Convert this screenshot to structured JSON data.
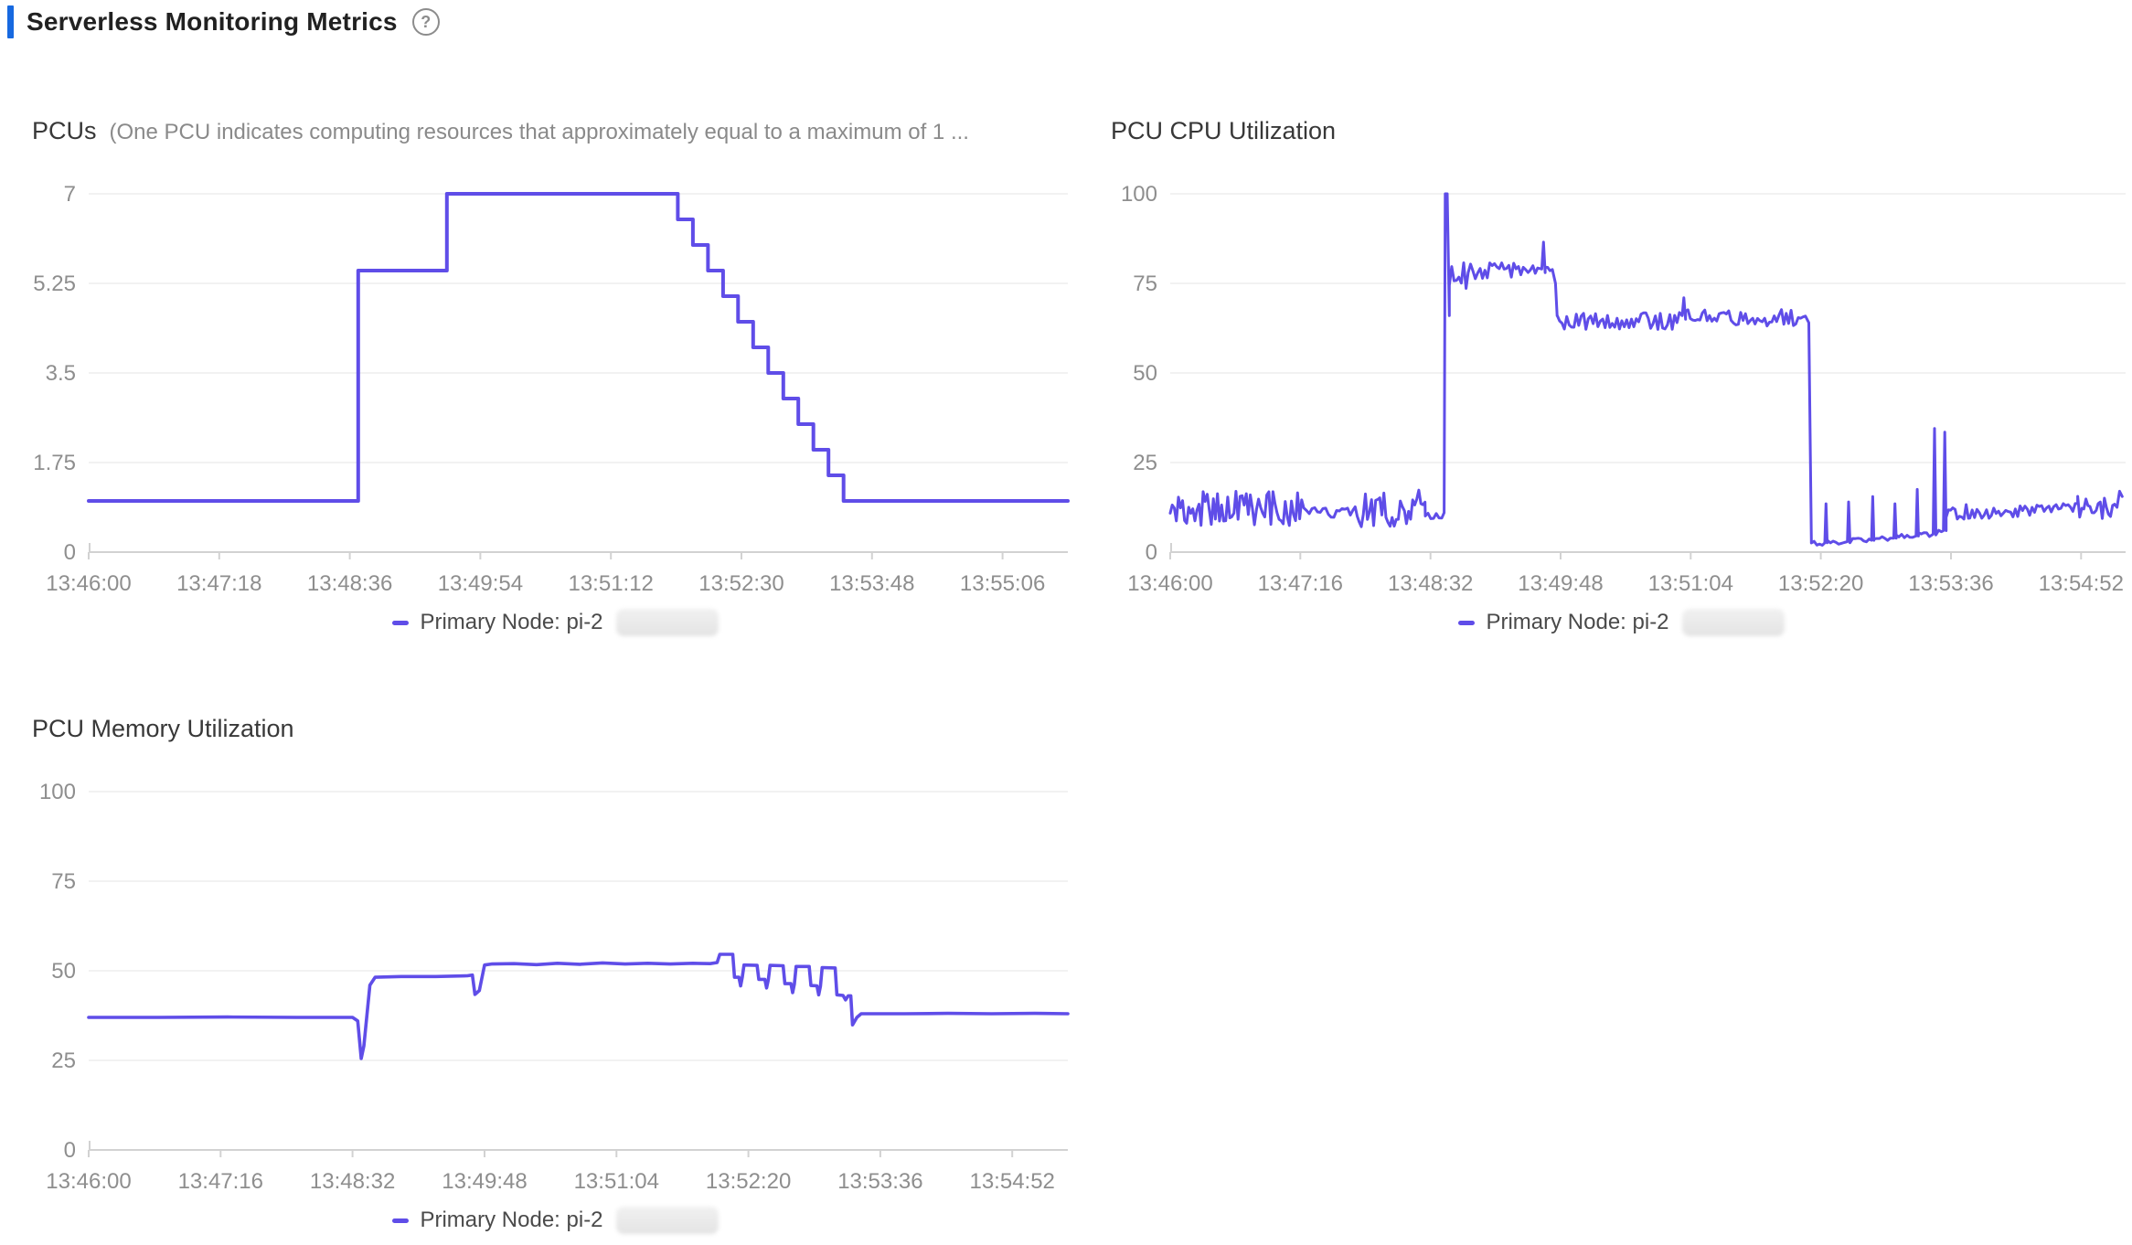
{
  "header": {
    "title": "Serverless Monitoring Metrics",
    "help_icon": "?"
  },
  "colors": {
    "accent_bar": "#1769e0",
    "line": "#5f4de8",
    "grid": "#ededed",
    "axis": "#d2d2d2",
    "tick_label": "#8e8e8e",
    "chart_title": "#383838",
    "subtitle": "#8a8a8a",
    "legend_text": "#4a4a4a"
  },
  "chart_data": [
    {
      "type": "line",
      "title": "PCUs",
      "subtitle": "(One PCU indicates computing resources that approximately equal to a maximum of 1 ...",
      "xlabel": "",
      "ylabel": "",
      "ylim": [
        0,
        7
      ],
      "grid": true,
      "y_ticks": [
        {
          "v": 0,
          "label": "0"
        },
        {
          "v": 1.75,
          "label": "1.75"
        },
        {
          "v": 3.5,
          "label": "3.5"
        },
        {
          "v": 5.25,
          "label": "5.25"
        },
        {
          "v": 7,
          "label": "7"
        }
      ],
      "x_ticks": [
        {
          "t": 0,
          "label": "13:46:00"
        },
        {
          "t": 78,
          "label": "13:47:18"
        },
        {
          "t": 156,
          "label": "13:48:36"
        },
        {
          "t": 234,
          "label": "13:49:54"
        },
        {
          "t": 312,
          "label": "13:51:12"
        },
        {
          "t": 390,
          "label": "13:52:30"
        },
        {
          "t": 468,
          "label": "13:53:48"
        },
        {
          "t": 546,
          "label": "13:55:06"
        }
      ],
      "t_max": 585,
      "legend": {
        "position": "bottom",
        "label": "Primary Node: pi-2",
        "redacted": true
      },
      "series": [
        {
          "name": "Primary Node: pi-2",
          "points": [
            [
              0,
              1
            ],
            [
              161,
              1
            ],
            [
              161,
              5.5
            ],
            [
              214,
              5.5
            ],
            [
              214,
              7
            ],
            [
              352,
              7
            ],
            [
              352,
              6.5
            ],
            [
              361,
              6.5
            ],
            [
              361,
              6
            ],
            [
              370,
              6
            ],
            [
              370,
              5.5
            ],
            [
              379,
              5.5
            ],
            [
              379,
              5
            ],
            [
              388,
              5
            ],
            [
              388,
              4.5
            ],
            [
              397,
              4.5
            ],
            [
              397,
              4
            ],
            [
              406,
              4
            ],
            [
              406,
              3.5
            ],
            [
              415,
              3.5
            ],
            [
              415,
              3
            ],
            [
              424,
              3
            ],
            [
              424,
              2.5
            ],
            [
              433,
              2.5
            ],
            [
              433,
              2
            ],
            [
              442,
              2
            ],
            [
              442,
              1.5
            ],
            [
              451,
              1.5
            ],
            [
              451,
              1
            ],
            [
              585,
              1
            ]
          ]
        }
      ]
    },
    {
      "type": "line",
      "title": "PCU CPU Utilization",
      "subtitle": "",
      "xlabel": "",
      "ylabel": "",
      "ylim": [
        0,
        100
      ],
      "grid": true,
      "y_ticks": [
        {
          "v": 0,
          "label": "0"
        },
        {
          "v": 25,
          "label": "25"
        },
        {
          "v": 50,
          "label": "50"
        },
        {
          "v": 75,
          "label": "75"
        },
        {
          "v": 100,
          "label": "100"
        }
      ],
      "x_ticks": [
        {
          "t": 0,
          "label": "13:46:00"
        },
        {
          "t": 76,
          "label": "13:47:16"
        },
        {
          "t": 152,
          "label": "13:48:32"
        },
        {
          "t": 228,
          "label": "13:49:48"
        },
        {
          "t": 304,
          "label": "13:51:04"
        },
        {
          "t": 380,
          "label": "13:52:20"
        },
        {
          "t": 456,
          "label": "13:53:36"
        },
        {
          "t": 532,
          "label": "13:54:52"
        }
      ],
      "t_max": 558,
      "legend": {
        "position": "bottom",
        "label": "Primary Node: pi-2",
        "redacted": true
      },
      "series": [
        {
          "name": "Primary Node: pi-2",
          "segments": [
            {
              "t0": 0,
              "t1": 78,
              "v": 12,
              "amp": 5.5,
              "dt": 1.2
            },
            {
              "t0": 78,
              "t1": 108,
              "v": 11,
              "amp": 1.4,
              "dt": 1.6
            },
            {
              "t0": 108,
              "t1": 149,
              "v": 12,
              "amp": 5.5,
              "dt": 1.2
            },
            {
              "t0": 149,
              "t1": 159,
              "v": 10,
              "amp": 0.9,
              "dt": 1.6
            },
            {
              "pts": [
                [
                  160,
                  11
                ],
                [
                  160.6,
                  100
                ],
                [
                  161.8,
                  100
                ],
                [
                  163,
                  66
                ]
              ]
            },
            {
              "t0": 163,
              "t1": 174,
              "v": 77,
              "amp": 5,
              "dt": 1.4
            },
            {
              "t0": 174,
              "t1": 216,
              "v": 78.5,
              "amp": 2.4,
              "dt": 1.4
            },
            {
              "pts": [
                [
                  217,
                  79
                ],
                [
                  218,
                  86.5
                ],
                [
                  219,
                  78
                ]
              ]
            },
            {
              "t0": 219,
              "t1": 224,
              "v": 78,
              "amp": 2,
              "dt": 1.4
            },
            {
              "pts": [
                [
                  225,
                  75
                ],
                [
                  226,
                  66
                ]
              ]
            },
            {
              "t0": 226,
              "t1": 298,
              "v": 64.5,
              "amp": 2.4,
              "dt": 1.4
            },
            {
              "pts": [
                [
                  299,
                  66
                ],
                [
                  300,
                  71
                ],
                [
                  301,
                  65
                ]
              ]
            },
            {
              "t0": 301,
              "t1": 372,
              "v": 65.5,
              "amp": 2.4,
              "dt": 1.4
            },
            {
              "pts": [
                [
                  373,
                  64
                ],
                [
                  374.5,
                  3
                ]
              ]
            },
            {
              "t0": 374.5,
              "t1": 381,
              "v": 2.5,
              "amp": 0.6,
              "dt": 1.6
            },
            {
              "pts": [
                [
                  382.3,
                  2.6
                ],
                [
                  383,
                  13.5
                ],
                [
                  383.7,
                  2.6
                ]
              ]
            },
            {
              "t0": 384,
              "t1": 395,
              "v": 2.8,
              "amp": 0.6,
              "dt": 1.6
            },
            {
              "pts": [
                [
                  395.5,
                  2.9
                ],
                [
                  396.2,
                  14
                ],
                [
                  397,
                  2.9
                ]
              ]
            },
            {
              "t0": 397,
              "t1": 409,
              "v": 3.2,
              "amp": 0.7,
              "dt": 1.6
            },
            {
              "pts": [
                [
                  409.6,
                  3.3
                ],
                [
                  410.3,
                  15.5
                ],
                [
                  411,
                  3.3
                ]
              ]
            },
            {
              "t0": 411,
              "t1": 422,
              "v": 3.8,
              "amp": 0.7,
              "dt": 1.6
            },
            {
              "pts": [
                [
                  422.6,
                  3.9
                ],
                [
                  423.3,
                  13.5
                ],
                [
                  424,
                  3.9
                ]
              ]
            },
            {
              "t0": 424,
              "t1": 435,
              "v": 4.4,
              "amp": 0.8,
              "dt": 1.6
            },
            {
              "pts": [
                [
                  435.6,
                  4.5
                ],
                [
                  436.3,
                  17.5
                ],
                [
                  437,
                  4.5
                ]
              ]
            },
            {
              "t0": 437,
              "t1": 445,
              "v": 5,
              "amp": 0.8,
              "dt": 1.6
            },
            {
              "pts": [
                [
                  445.6,
                  5
                ],
                [
                  446.4,
                  34.5
                ],
                [
                  447.2,
                  5.5
                ]
              ]
            },
            {
              "t0": 447.2,
              "t1": 451,
              "v": 5.5,
              "amp": 0.8,
              "dt": 1.6
            },
            {
              "pts": [
                [
                  451.6,
                  6
                ],
                [
                  452.4,
                  33.5
                ],
                [
                  453.2,
                  6
                ]
              ]
            },
            {
              "t0": 453.2,
              "t1": 467,
              "v": 11.5,
              "amp": 2.6,
              "dt": 1.3
            },
            {
              "t0": 467,
              "t1": 530,
              "v0": 10.5,
              "v1": 12.5,
              "amp": 1.5,
              "dt": 1.4
            },
            {
              "t0": 530,
              "t1": 552,
              "v": 12.5,
              "amp": 3.2,
              "dt": 1.2
            },
            {
              "pts": [
                [
                  553,
                  12.5
                ],
                [
                  554.5,
                  17
                ],
                [
                  556,
                  15.5
                ]
              ]
            }
          ]
        }
      ]
    },
    {
      "type": "line",
      "title": "PCU Memory Utilization",
      "subtitle": "",
      "xlabel": "",
      "ylabel": "",
      "ylim": [
        0,
        100
      ],
      "grid": true,
      "y_ticks": [
        {
          "v": 0,
          "label": "0"
        },
        {
          "v": 25,
          "label": "25"
        },
        {
          "v": 50,
          "label": "50"
        },
        {
          "v": 75,
          "label": "75"
        },
        {
          "v": 100,
          "label": "100"
        }
      ],
      "x_ticks": [
        {
          "t": 0,
          "label": "13:46:00"
        },
        {
          "t": 76,
          "label": "13:47:16"
        },
        {
          "t": 152,
          "label": "13:48:32"
        },
        {
          "t": 228,
          "label": "13:49:48"
        },
        {
          "t": 304,
          "label": "13:51:04"
        },
        {
          "t": 380,
          "label": "13:52:20"
        },
        {
          "t": 456,
          "label": "13:53:36"
        },
        {
          "t": 532,
          "label": "13:54:52"
        }
      ],
      "t_max": 564,
      "legend": {
        "position": "bottom",
        "label": "Primary Node: pi-2",
        "redacted": true
      },
      "series": [
        {
          "name": "Primary Node: pi-2",
          "points": [
            [
              0,
              37
            ],
            [
              40,
              37
            ],
            [
              80,
              37.1
            ],
            [
              120,
              37
            ],
            [
              152,
              37
            ],
            [
              155,
              36
            ],
            [
              157,
              25.5
            ],
            [
              158.5,
              29
            ],
            [
              162,
              46
            ],
            [
              165,
              48.2
            ],
            [
              180,
              48.4
            ],
            [
              200,
              48.4
            ],
            [
              218,
              48.6
            ],
            [
              221,
              48.8
            ],
            [
              222.5,
              43.4
            ],
            [
              225,
              44.5
            ],
            [
              228,
              51.6
            ],
            [
              232,
              51.9
            ],
            [
              245,
              52
            ],
            [
              258,
              51.7
            ],
            [
              270,
              52.1
            ],
            [
              283,
              51.8
            ],
            [
              296,
              52.2
            ],
            [
              309,
              51.9
            ],
            [
              322,
              52.1
            ],
            [
              335,
              51.9
            ],
            [
              348,
              52.1
            ],
            [
              358,
              52
            ],
            [
              362,
              52.3
            ],
            [
              363.5,
              54.6
            ],
            [
              371,
              54.6
            ],
            [
              372,
              48.2
            ],
            [
              374.5,
              48.2
            ],
            [
              375.5,
              45.8
            ],
            [
              376.5,
              48.2
            ],
            [
              377.5,
              51.6
            ],
            [
              385,
              51.5
            ],
            [
              386,
              47.6
            ],
            [
              389.5,
              47.6
            ],
            [
              390.5,
              45.2
            ],
            [
              391.5,
              47.5
            ],
            [
              392.5,
              51.5
            ],
            [
              400,
              51.4
            ],
            [
              401,
              46.4
            ],
            [
              404.5,
              46.4
            ],
            [
              405.5,
              43.9
            ],
            [
              406.5,
              46.3
            ],
            [
              407.5,
              51.2
            ],
            [
              415,
              51.2
            ],
            [
              416,
              45.9
            ],
            [
              419.5,
              45.8
            ],
            [
              420.5,
              43.3
            ],
            [
              421.5,
              45.7
            ],
            [
              422.5,
              50.9
            ],
            [
              430,
              50.8
            ],
            [
              431,
              43.3
            ],
            [
              434.5,
              43.1
            ],
            [
              436,
              41.9
            ],
            [
              437.5,
              43
            ],
            [
              439,
              43
            ],
            [
              440,
              34.9
            ],
            [
              442.5,
              37
            ],
            [
              445,
              38
            ],
            [
              470,
              38
            ],
            [
              495,
              38.1
            ],
            [
              520,
              38
            ],
            [
              545,
              38.1
            ],
            [
              564,
              38
            ]
          ]
        }
      ]
    }
  ]
}
